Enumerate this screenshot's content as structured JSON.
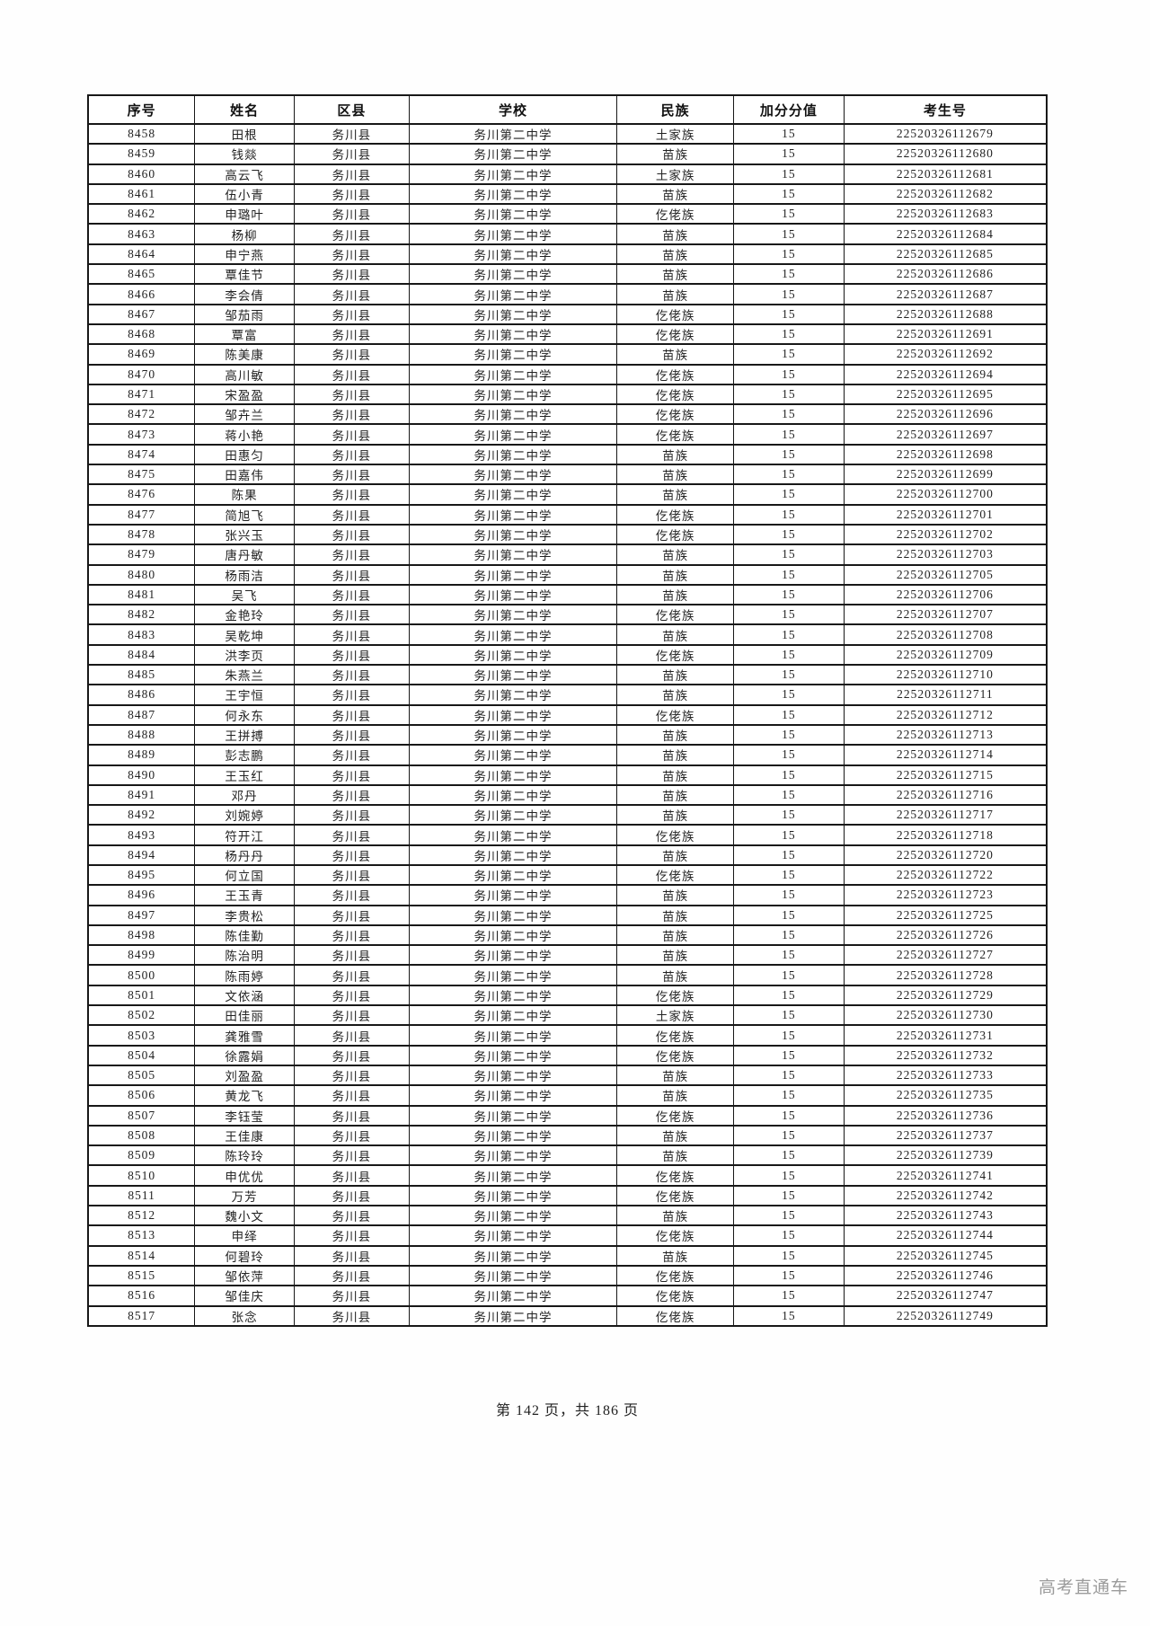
{
  "document": {
    "footer": {
      "page_info": "第 142 页，共 186 页"
    },
    "watermark": "高考直通车"
  },
  "table": {
    "columns": [
      "序号",
      "姓名",
      "区县",
      "学校",
      "民族",
      "加分分值",
      "考生号"
    ],
    "column_widths_pct": [
      11.13,
      10.38,
      11.97,
      21.7,
      12.16,
      11.51,
      21.15
    ],
    "rows": [
      [
        "8458",
        "田根",
        "务川县",
        "务川第二中学",
        "土家族",
        "15",
        "22520326112679"
      ],
      [
        "8459",
        "钱燚",
        "务川县",
        "务川第二中学",
        "苗族",
        "15",
        "22520326112680"
      ],
      [
        "8460",
        "高云飞",
        "务川县",
        "务川第二中学",
        "土家族",
        "15",
        "22520326112681"
      ],
      [
        "8461",
        "伍小青",
        "务川县",
        "务川第二中学",
        "苗族",
        "15",
        "22520326112682"
      ],
      [
        "8462",
        "申璐叶",
        "务川县",
        "务川第二中学",
        "仡佬族",
        "15",
        "22520326112683"
      ],
      [
        "8463",
        "杨柳",
        "务川县",
        "务川第二中学",
        "苗族",
        "15",
        "22520326112684"
      ],
      [
        "8464",
        "申宁燕",
        "务川县",
        "务川第二中学",
        "苗族",
        "15",
        "22520326112685"
      ],
      [
        "8465",
        "覃佳节",
        "务川县",
        "务川第二中学",
        "苗族",
        "15",
        "22520326112686"
      ],
      [
        "8466",
        "李会倩",
        "务川县",
        "务川第二中学",
        "苗族",
        "15",
        "22520326112687"
      ],
      [
        "8467",
        "邹茄雨",
        "务川县",
        "务川第二中学",
        "仡佬族",
        "15",
        "22520326112688"
      ],
      [
        "8468",
        "覃富",
        "务川县",
        "务川第二中学",
        "仡佬族",
        "15",
        "22520326112691"
      ],
      [
        "8469",
        "陈美康",
        "务川县",
        "务川第二中学",
        "苗族",
        "15",
        "22520326112692"
      ],
      [
        "8470",
        "高川敏",
        "务川县",
        "务川第二中学",
        "仡佬族",
        "15",
        "22520326112694"
      ],
      [
        "8471",
        "宋盈盈",
        "务川县",
        "务川第二中学",
        "仡佬族",
        "15",
        "22520326112695"
      ],
      [
        "8472",
        "邹卉兰",
        "务川县",
        "务川第二中学",
        "仡佬族",
        "15",
        "22520326112696"
      ],
      [
        "8473",
        "蒋小艳",
        "务川县",
        "务川第二中学",
        "仡佬族",
        "15",
        "22520326112697"
      ],
      [
        "8474",
        "田惠匀",
        "务川县",
        "务川第二中学",
        "苗族",
        "15",
        "22520326112698"
      ],
      [
        "8475",
        "田嘉伟",
        "务川县",
        "务川第二中学",
        "苗族",
        "15",
        "22520326112699"
      ],
      [
        "8476",
        "陈果",
        "务川县",
        "务川第二中学",
        "苗族",
        "15",
        "22520326112700"
      ],
      [
        "8477",
        "简旭飞",
        "务川县",
        "务川第二中学",
        "仡佬族",
        "15",
        "22520326112701"
      ],
      [
        "8478",
        "张兴玉",
        "务川县",
        "务川第二中学",
        "仡佬族",
        "15",
        "22520326112702"
      ],
      [
        "8479",
        "唐丹敏",
        "务川县",
        "务川第二中学",
        "苗族",
        "15",
        "22520326112703"
      ],
      [
        "8480",
        "杨雨洁",
        "务川县",
        "务川第二中学",
        "苗族",
        "15",
        "22520326112705"
      ],
      [
        "8481",
        "吴飞",
        "务川县",
        "务川第二中学",
        "苗族",
        "15",
        "22520326112706"
      ],
      [
        "8482",
        "金艳玲",
        "务川县",
        "务川第二中学",
        "仡佬族",
        "15",
        "22520326112707"
      ],
      [
        "8483",
        "吴乾坤",
        "务川县",
        "务川第二中学",
        "苗族",
        "15",
        "22520326112708"
      ],
      [
        "8484",
        "洪李页",
        "务川县",
        "务川第二中学",
        "仡佬族",
        "15",
        "22520326112709"
      ],
      [
        "8485",
        "朱燕兰",
        "务川县",
        "务川第二中学",
        "苗族",
        "15",
        "22520326112710"
      ],
      [
        "8486",
        "王宇恒",
        "务川县",
        "务川第二中学",
        "苗族",
        "15",
        "22520326112711"
      ],
      [
        "8487",
        "何永东",
        "务川县",
        "务川第二中学",
        "仡佬族",
        "15",
        "22520326112712"
      ],
      [
        "8488",
        "王拼搏",
        "务川县",
        "务川第二中学",
        "苗族",
        "15",
        "22520326112713"
      ],
      [
        "8489",
        "彭志鹏",
        "务川县",
        "务川第二中学",
        "苗族",
        "15",
        "22520326112714"
      ],
      [
        "8490",
        "王玉红",
        "务川县",
        "务川第二中学",
        "苗族",
        "15",
        "22520326112715"
      ],
      [
        "8491",
        "邓丹",
        "务川县",
        "务川第二中学",
        "苗族",
        "15",
        "22520326112716"
      ],
      [
        "8492",
        "刘婉婷",
        "务川县",
        "务川第二中学",
        "苗族",
        "15",
        "22520326112717"
      ],
      [
        "8493",
        "符开江",
        "务川县",
        "务川第二中学",
        "仡佬族",
        "15",
        "22520326112718"
      ],
      [
        "8494",
        "杨丹丹",
        "务川县",
        "务川第二中学",
        "苗族",
        "15",
        "22520326112720"
      ],
      [
        "8495",
        "何立国",
        "务川县",
        "务川第二中学",
        "仡佬族",
        "15",
        "22520326112722"
      ],
      [
        "8496",
        "王玉青",
        "务川县",
        "务川第二中学",
        "苗族",
        "15",
        "22520326112723"
      ],
      [
        "8497",
        "李贵松",
        "务川县",
        "务川第二中学",
        "苗族",
        "15",
        "22520326112725"
      ],
      [
        "8498",
        "陈佳勤",
        "务川县",
        "务川第二中学",
        "苗族",
        "15",
        "22520326112726"
      ],
      [
        "8499",
        "陈治明",
        "务川县",
        "务川第二中学",
        "苗族",
        "15",
        "22520326112727"
      ],
      [
        "8500",
        "陈雨婷",
        "务川县",
        "务川第二中学",
        "苗族",
        "15",
        "22520326112728"
      ],
      [
        "8501",
        "文依涵",
        "务川县",
        "务川第二中学",
        "仡佬族",
        "15",
        "22520326112729"
      ],
      [
        "8502",
        "田佳丽",
        "务川县",
        "务川第二中学",
        "土家族",
        "15",
        "22520326112730"
      ],
      [
        "8503",
        "龚雅雪",
        "务川县",
        "务川第二中学",
        "仡佬族",
        "15",
        "22520326112731"
      ],
      [
        "8504",
        "徐露娟",
        "务川县",
        "务川第二中学",
        "仡佬族",
        "15",
        "22520326112732"
      ],
      [
        "8505",
        "刘盈盈",
        "务川县",
        "务川第二中学",
        "苗族",
        "15",
        "22520326112733"
      ],
      [
        "8506",
        "黄龙飞",
        "务川县",
        "务川第二中学",
        "苗族",
        "15",
        "22520326112735"
      ],
      [
        "8507",
        "李钰莹",
        "务川县",
        "务川第二中学",
        "仡佬族",
        "15",
        "22520326112736"
      ],
      [
        "8508",
        "王佳康",
        "务川县",
        "务川第二中学",
        "苗族",
        "15",
        "22520326112737"
      ],
      [
        "8509",
        "陈玲玲",
        "务川县",
        "务川第二中学",
        "苗族",
        "15",
        "22520326112739"
      ],
      [
        "8510",
        "申优优",
        "务川县",
        "务川第二中学",
        "仡佬族",
        "15",
        "22520326112741"
      ],
      [
        "8511",
        "万芳",
        "务川县",
        "务川第二中学",
        "仡佬族",
        "15",
        "22520326112742"
      ],
      [
        "8512",
        "魏小文",
        "务川县",
        "务川第二中学",
        "苗族",
        "15",
        "22520326112743"
      ],
      [
        "8513",
        "申绎",
        "务川县",
        "务川第二中学",
        "仡佬族",
        "15",
        "22520326112744"
      ],
      [
        "8514",
        "何碧玲",
        "务川县",
        "务川第二中学",
        "苗族",
        "15",
        "22520326112745"
      ],
      [
        "8515",
        "邹依萍",
        "务川县",
        "务川第二中学",
        "仡佬族",
        "15",
        "22520326112746"
      ],
      [
        "8516",
        "邹佳庆",
        "务川县",
        "务川第二中学",
        "仡佬族",
        "15",
        "22520326112747"
      ],
      [
        "8517",
        "张念",
        "务川县",
        "务川第二中学",
        "仡佬族",
        "15",
        "22520326112749"
      ]
    ]
  }
}
